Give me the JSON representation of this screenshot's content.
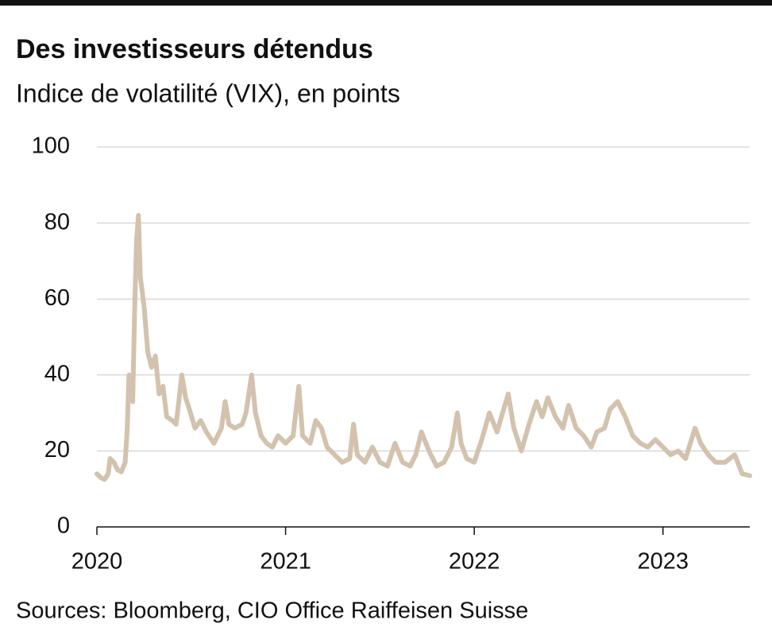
{
  "chart_data": {
    "type": "line",
    "title": "Des investisseurs détendus",
    "subtitle": "Indice de volatilité (VIX), en points",
    "source": "Sources: Bloomberg, CIO Office Raiffeisen Suisse",
    "x": [
      2020.0,
      2020.02,
      2020.04,
      2020.06,
      2020.07,
      2020.09,
      2020.11,
      2020.13,
      2020.15,
      2020.16,
      2020.17,
      2020.19,
      2020.2,
      2020.21,
      2020.22,
      2020.23,
      2020.25,
      2020.27,
      2020.29,
      2020.31,
      2020.33,
      2020.35,
      2020.37,
      2020.4,
      2020.42,
      2020.45,
      2020.47,
      2020.49,
      2020.52,
      2020.55,
      2020.58,
      2020.62,
      2020.66,
      2020.68,
      2020.7,
      2020.73,
      2020.77,
      2020.79,
      2020.82,
      2020.84,
      2020.87,
      2020.9,
      2020.93,
      2020.96,
      2021.0,
      2021.04,
      2021.07,
      2021.09,
      2021.13,
      2021.16,
      2021.19,
      2021.22,
      2021.26,
      2021.3,
      2021.34,
      2021.36,
      2021.38,
      2021.42,
      2021.46,
      2021.5,
      2021.54,
      2021.58,
      2021.62,
      2021.66,
      2021.69,
      2021.72,
      2021.76,
      2021.8,
      2021.84,
      2021.88,
      2021.91,
      2021.93,
      2021.96,
      2022.0,
      2022.04,
      2022.08,
      2022.12,
      2022.15,
      2022.18,
      2022.21,
      2022.25,
      2022.29,
      2022.33,
      2022.36,
      2022.39,
      2022.43,
      2022.47,
      2022.5,
      2022.54,
      2022.58,
      2022.62,
      2022.65,
      2022.69,
      2022.72,
      2022.76,
      2022.8,
      2022.84,
      2022.88,
      2022.92,
      2022.96,
      2023.0,
      2023.04,
      2023.08,
      2023.12,
      2023.17,
      2023.2,
      2023.24,
      2023.28,
      2023.33,
      2023.38,
      2023.42,
      2023.46
    ],
    "series": [
      {
        "name": "VIX",
        "color": "#d3c2ad",
        "values": [
          14,
          13,
          12.5,
          14,
          18,
          17,
          15,
          14.5,
          17,
          25,
          40,
          33,
          57,
          75,
          82,
          66,
          58,
          46,
          42,
          45,
          35,
          37,
          29,
          28,
          27,
          40,
          34,
          31,
          26,
          28,
          25,
          22,
          26,
          33,
          27,
          26,
          27,
          30,
          40,
          30,
          24,
          22,
          21,
          24,
          22,
          24,
          37,
          24,
          22,
          28,
          26,
          21,
          19,
          17,
          18,
          27,
          19,
          17,
          21,
          17,
          16,
          22,
          17,
          16,
          19,
          25,
          20,
          16,
          17,
          21,
          30,
          22,
          18,
          17,
          23,
          30,
          25,
          30,
          35,
          26,
          20,
          27,
          33,
          29,
          34,
          29,
          26,
          32,
          26,
          24,
          21,
          25,
          26,
          31,
          33,
          29,
          24,
          22,
          21,
          23,
          21,
          19,
          20,
          18,
          26,
          22,
          19,
          17,
          17,
          19,
          14,
          13.5
        ]
      }
    ],
    "xlim": [
      2020,
      2023.46
    ],
    "xticks": [
      2020,
      2021,
      2022,
      2023
    ],
    "ylim": [
      0,
      100
    ],
    "yticks": [
      0,
      20,
      40,
      60,
      80,
      100
    ],
    "grid": true
  }
}
